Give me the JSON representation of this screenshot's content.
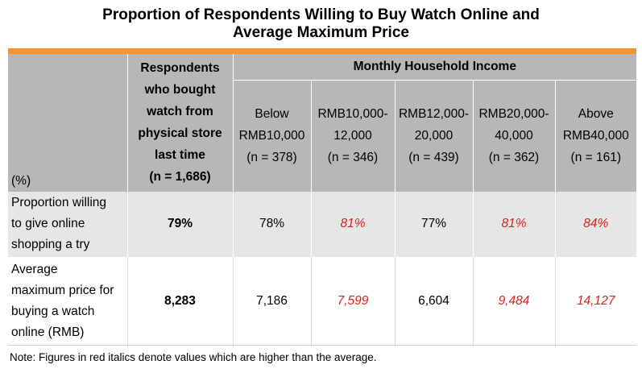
{
  "title_line1": "Proportion of Respondents Willing to Buy Watch Online and",
  "title_line2": "Average Maximum Price",
  "header": {
    "unit": "(%)",
    "respondents": [
      "Respondents",
      "who bought",
      "watch from",
      "physical store",
      "last time",
      "(n = 1,686)"
    ],
    "monthly_income": "Monthly Household Income",
    "columns": [
      {
        "line1": "Below",
        "line2": "RMB10,000",
        "n": "(n = 378)"
      },
      {
        "line1": "RMB10,000-",
        "line2": "12,000",
        "n": "(n = 346)"
      },
      {
        "line1": "RMB12,000-",
        "line2": "20,000",
        "n": "(n = 439)"
      },
      {
        "line1": "RMB20,000-",
        "line2": "40,000",
        "n": "(n = 362)"
      },
      {
        "line1": "Above",
        "line2": "RMB40,000",
        "n": "(n = 161)"
      }
    ]
  },
  "rows": [
    {
      "label": [
        "Proportion willing",
        "to give online",
        "shopping a try"
      ],
      "overall": "79%",
      "values": [
        "78%",
        "81%",
        "77%",
        "81%",
        "84%"
      ]
    },
    {
      "label": [
        "Average",
        "maximum price for",
        "buying a watch",
        "online (RMB)"
      ],
      "overall": "8,283",
      "values": [
        "7,186",
        "7,599",
        "6,604",
        "9,484",
        "14,127"
      ]
    }
  ],
  "highlight_color": "#e0201b",
  "note": "Note: Figures in red italics denote values which are higher than the average."
}
